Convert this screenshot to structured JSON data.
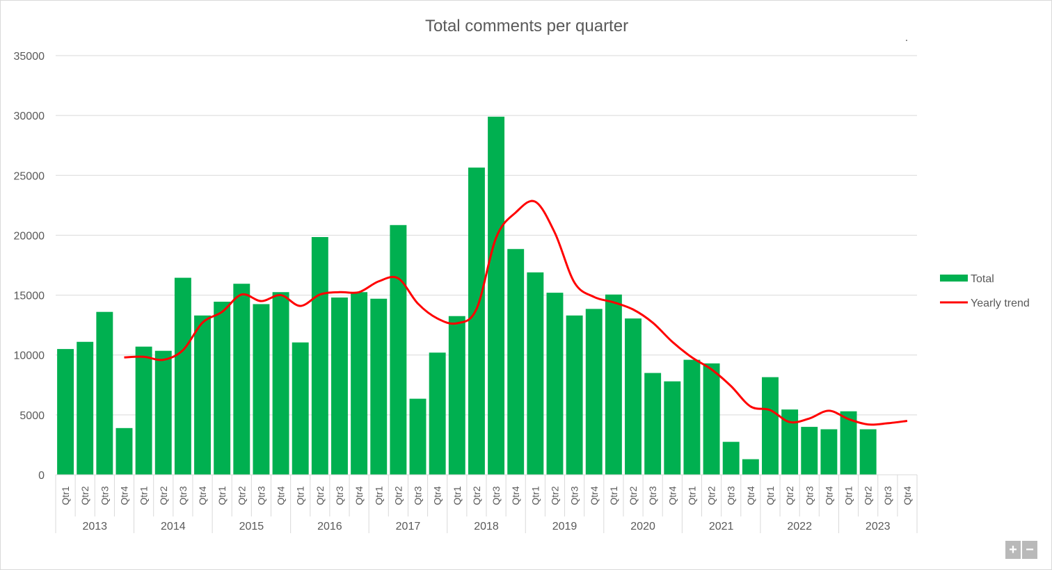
{
  "chart_data": {
    "type": "bar",
    "title": "Total comments per quarter",
    "ylim": [
      0,
      35000
    ],
    "yticks": [
      0,
      5000,
      10000,
      15000,
      20000,
      25000,
      30000,
      35000
    ],
    "years": [
      "2013",
      "2014",
      "2015",
      "2016",
      "2017",
      "2018",
      "2019",
      "2020",
      "2021",
      "2022",
      "2023"
    ],
    "quarters": [
      "Qtr1",
      "Qtr2",
      "Qtr3",
      "Qtr4"
    ],
    "grid": true,
    "legend_position": "right",
    "series": [
      {
        "name": "Total",
        "type": "bar",
        "color": "#00B050",
        "values": [
          10500,
          11100,
          13600,
          3900,
          10700,
          10350,
          16450,
          13300,
          14450,
          15950,
          14250,
          15250,
          11050,
          19850,
          14800,
          15250,
          14700,
          20850,
          6350,
          10200,
          13250,
          25650,
          29900,
          18850,
          16900,
          15200,
          13300,
          13850,
          15050,
          13050,
          8500,
          7800,
          9600,
          9300,
          2750,
          1300,
          8150,
          5450,
          4000,
          3800,
          5300,
          3800,
          null,
          null
        ]
      },
      {
        "name": "Yearly trend",
        "type": "line",
        "color": "#FF0000",
        "values": [
          null,
          null,
          null,
          9800,
          9850,
          9600,
          10400,
          12700,
          13600,
          15050,
          14500,
          15000,
          14100,
          15050,
          15250,
          15250,
          16150,
          16400,
          14300,
          13050,
          12650,
          13850,
          19800,
          21900,
          22800,
          20200,
          16050,
          14850,
          14400,
          13800,
          12700,
          11100,
          9800,
          8800,
          7400,
          5700,
          5400,
          4400,
          4700,
          5350,
          4650,
          4200,
          4300,
          4500
        ]
      }
    ]
  },
  "legend": {
    "total_label": "Total",
    "trend_label": "Yearly trend"
  },
  "stray_mark": ".",
  "zoom": {
    "plus": "+",
    "minus": "−"
  }
}
